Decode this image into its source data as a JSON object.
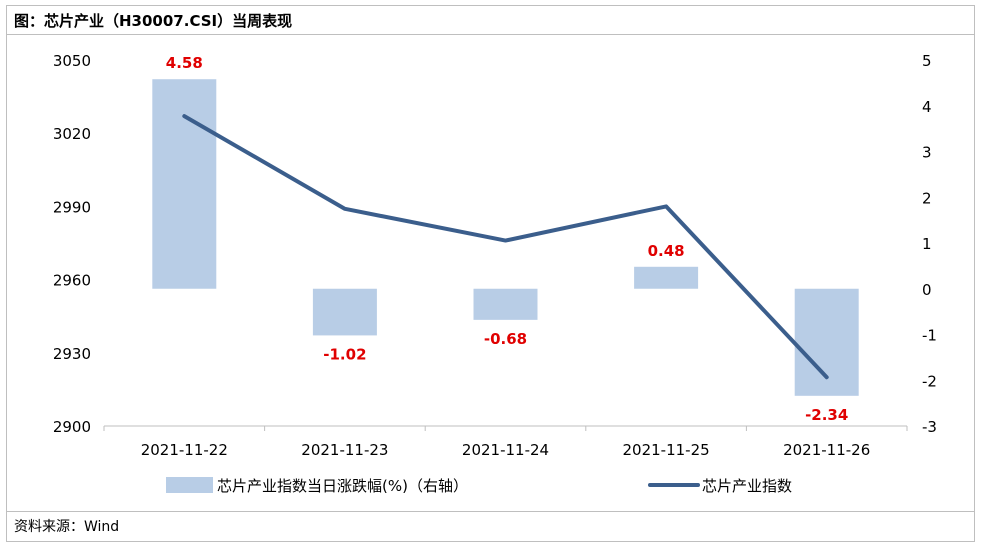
{
  "title": "图：芯片产业（H30007.CSI）当周表现",
  "source": "资料来源：Wind",
  "chart_data": {
    "type": "bar+line",
    "categories": [
      "2021-11-22",
      "2021-11-23",
      "2021-11-24",
      "2021-11-25",
      "2021-11-26"
    ],
    "series": [
      {
        "name": "芯片产业指数当日涨跌幅(%)（右轴）",
        "type": "bar",
        "axis": "right",
        "values": [
          4.58,
          -1.02,
          -0.68,
          0.48,
          -2.34
        ],
        "labels": [
          "4.58",
          "-1.02",
          "-0.68",
          "0.48",
          "-2.34"
        ],
        "color": "#b8cde6"
      },
      {
        "name": "芯片产业指数",
        "type": "line",
        "axis": "left",
        "values": [
          3027,
          2989,
          2976,
          2990,
          2920
        ],
        "color": "#3b5e8c"
      }
    ],
    "y_left": {
      "lim": [
        2900,
        3050
      ],
      "ticks": [
        "2900",
        "2930",
        "2960",
        "2990",
        "3020",
        "3050"
      ]
    },
    "y_right": {
      "lim": [
        -3,
        5
      ],
      "ticks": [
        "-3",
        "-2",
        "-1",
        "0",
        "1",
        "2",
        "3",
        "4",
        "5"
      ]
    },
    "label_color": "#e00000",
    "legend_position": "bottom",
    "grid": false
  }
}
